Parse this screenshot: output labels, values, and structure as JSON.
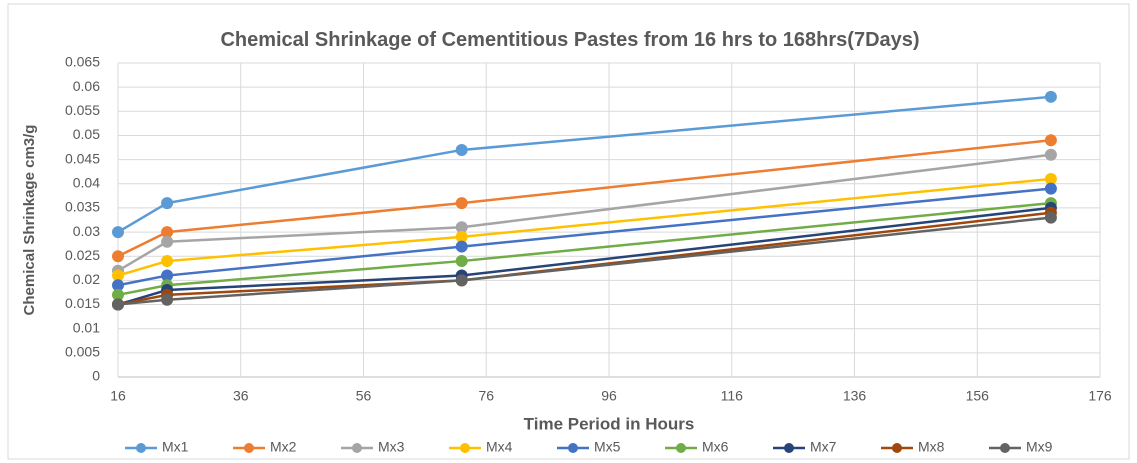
{
  "chart_data": {
    "type": "line",
    "title": "Chemical Shrinkage of Cementitious Pastes from 16 hrs to 168hrs(7Days)",
    "x_label": "Time Period in Hours",
    "y_label": "Chemical Shrinkage cm3/g",
    "x": [
      16,
      24,
      72,
      168
    ],
    "xlim": [
      16,
      176
    ],
    "xticks": [
      16,
      36,
      56,
      76,
      96,
      116,
      136,
      156,
      176
    ],
    "ylim": [
      0,
      0.065
    ],
    "yticks": [
      0,
      0.005,
      0.01,
      0.015,
      0.02,
      0.025,
      0.03,
      0.035,
      0.04,
      0.045,
      0.05,
      0.055,
      0.06,
      0.065
    ],
    "grid": true,
    "legend": "bottom",
    "series": [
      {
        "name": "Mx1",
        "color": "#5b9bd5",
        "values": [
          0.03,
          0.036,
          0.047,
          0.058
        ]
      },
      {
        "name": "Mx2",
        "color": "#ed7d31",
        "values": [
          0.025,
          0.03,
          0.036,
          0.049
        ]
      },
      {
        "name": "Mx3",
        "color": "#a5a5a5",
        "values": [
          0.022,
          0.028,
          0.031,
          0.046
        ]
      },
      {
        "name": "Mx4",
        "color": "#ffc000",
        "values": [
          0.021,
          0.024,
          0.029,
          0.041
        ]
      },
      {
        "name": "Mx5",
        "color": "#4472c4",
        "values": [
          0.019,
          0.021,
          0.027,
          0.039
        ]
      },
      {
        "name": "Mx6",
        "color": "#70ad47",
        "values": [
          0.017,
          0.019,
          0.024,
          0.036
        ]
      },
      {
        "name": "Mx7",
        "color": "#264478",
        "values": [
          0.015,
          0.018,
          0.021,
          0.035
        ]
      },
      {
        "name": "Mx8",
        "color": "#9e480e",
        "values": [
          0.015,
          0.017,
          0.02,
          0.034
        ]
      },
      {
        "name": "Mx9",
        "color": "#636363",
        "values": [
          0.015,
          0.016,
          0.02,
          0.033
        ]
      }
    ]
  }
}
